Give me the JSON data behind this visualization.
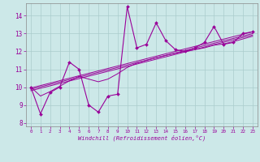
{
  "xlabel": "Windchill (Refroidissement éolien,°C)",
  "bg_color": "#cce8e8",
  "line_color": "#990099",
  "grid_color": "#aacccc",
  "xlim": [
    -0.5,
    23.5
  ],
  "ylim": [
    7.8,
    14.7
  ],
  "yticks": [
    8,
    9,
    10,
    11,
    12,
    13,
    14
  ],
  "xticks": [
    0,
    1,
    2,
    3,
    4,
    5,
    6,
    7,
    8,
    9,
    10,
    11,
    12,
    13,
    14,
    15,
    16,
    17,
    18,
    19,
    20,
    21,
    22,
    23
  ],
  "main_x": [
    0,
    1,
    2,
    3,
    4,
    5,
    6,
    7,
    8,
    9,
    10,
    11,
    12,
    13,
    14,
    15,
    16,
    17,
    18,
    19,
    20,
    21,
    22,
    23
  ],
  "main_y": [
    10.0,
    8.5,
    9.7,
    10.0,
    11.4,
    11.0,
    9.0,
    8.6,
    9.5,
    9.6,
    14.5,
    12.2,
    12.4,
    13.6,
    12.6,
    12.1,
    12.0,
    12.2,
    12.5,
    13.4,
    12.4,
    12.5,
    13.0,
    13.1
  ],
  "trend1_x": [
    0,
    23
  ],
  "trend1_y": [
    9.95,
    13.1
  ],
  "trend2_x": [
    0,
    23
  ],
  "trend2_y": [
    9.88,
    13.0
  ],
  "trend3_x": [
    0,
    23
  ],
  "trend3_y": [
    9.8,
    12.92
  ],
  "smooth_x": [
    0,
    1,
    2,
    3,
    4,
    5,
    6,
    7,
    8,
    9,
    10,
    11,
    12,
    13,
    14,
    15,
    16,
    17,
    18,
    19,
    20,
    21,
    22,
    23
  ],
  "smooth_y": [
    10.0,
    9.5,
    9.75,
    10.05,
    10.35,
    10.6,
    10.45,
    10.3,
    10.45,
    10.75,
    11.1,
    11.35,
    11.5,
    11.65,
    11.78,
    11.9,
    12.0,
    12.1,
    12.2,
    12.35,
    12.42,
    12.55,
    12.7,
    12.85
  ]
}
